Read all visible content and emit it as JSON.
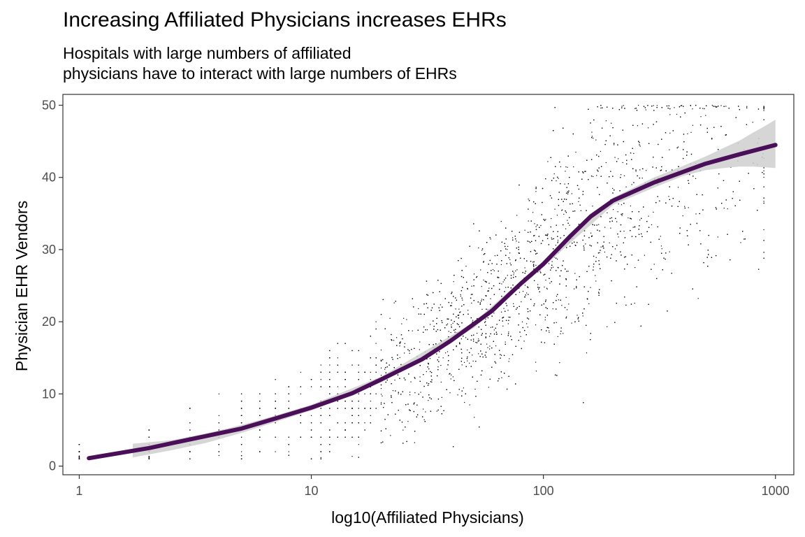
{
  "chart_data": {
    "type": "scatter",
    "title": "Increasing Affiliated Physicians increases EHRs",
    "subtitle_lines": [
      "Hospitals with large numbers of affiliated",
      "physicians have to interact with large numbers of EHRs"
    ],
    "xlabel": "log10(Affiliated Physicians)",
    "ylabel": "Physician EHR Vendors",
    "x_scale": "log10",
    "xlim": [
      0.85,
      1200
    ],
    "ylim": [
      -1.2,
      51.5
    ],
    "x_ticks": [
      1,
      10,
      100,
      1000
    ],
    "x_tick_labels": [
      "1",
      "10",
      "100",
      "1000"
    ],
    "y_ticks": [
      0,
      10,
      20,
      30,
      40,
      50
    ],
    "y_tick_labels": [
      "0",
      "10",
      "20",
      "30",
      "40",
      "50"
    ],
    "grid": false,
    "legend": "none",
    "smooth_line": {
      "color": "#4a0f58",
      "x": [
        1.1,
        2,
        3,
        5,
        7,
        10,
        15,
        20,
        30,
        40,
        60,
        80,
        100,
        130,
        160,
        200,
        300,
        500,
        700,
        1000
      ],
      "y": [
        1.1,
        2.5,
        3.7,
        5.2,
        6.6,
        8.1,
        10.1,
        12.0,
        14.8,
        17.4,
        21.5,
        25.3,
        28.0,
        31.8,
        34.6,
        36.8,
        39.3,
        41.9,
        43.2,
        44.5
      ]
    },
    "confidence_band": {
      "color": "#cfcfcf",
      "x": [
        1.7,
        2.5,
        3.5,
        5,
        7,
        10,
        20,
        50,
        100,
        200,
        300,
        400,
        500,
        600,
        700,
        800,
        900,
        1000
      ],
      "y_low": [
        1.2,
        2.2,
        3.2,
        4.6,
        6.1,
        7.7,
        11.6,
        19.1,
        27.6,
        36.2,
        38.6,
        40.2,
        41.0,
        41.3,
        41.5,
        41.5,
        41.4,
        41.3
      ],
      "y_high": [
        3.1,
        3.6,
        4.5,
        5.7,
        7.0,
        8.5,
        12.4,
        19.9,
        28.4,
        37.2,
        40.0,
        41.6,
        42.9,
        44.1,
        45.1,
        46.2,
        47.1,
        48.0
      ]
    },
    "scatter_points": {
      "color": "#000000",
      "count": 4200,
      "note_values": "dense cloud of hospitals following the smooth trend; discrete x at low physician counts (1,2,3,...), y spread widening from about ±1 at x=1 to about ±10 around x=100-300"
    }
  }
}
